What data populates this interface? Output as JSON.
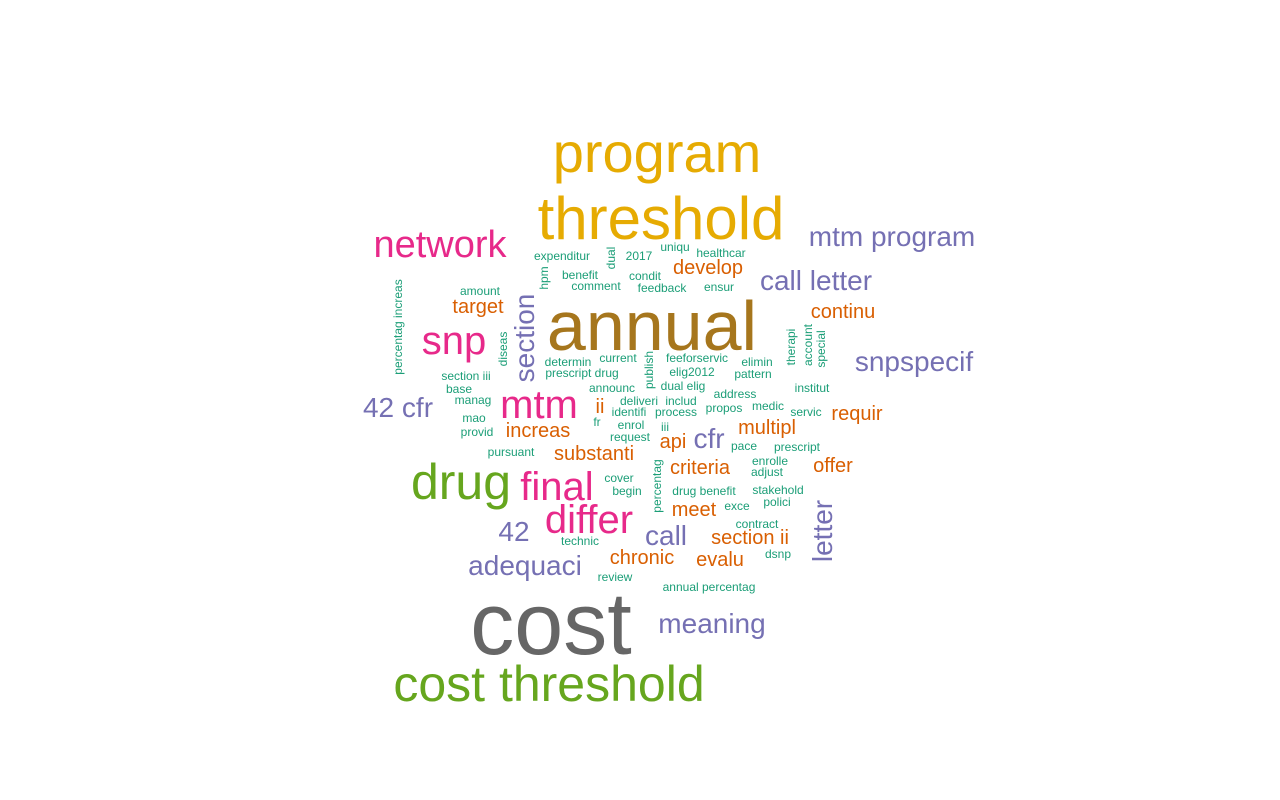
{
  "colors": {
    "gold_dark": "#a6761d",
    "gold": "#e6ab02",
    "green": "#66a61e",
    "magenta": "#e7298a",
    "purple": "#7570b3",
    "orange": "#d95f02",
    "teal": "#1b9e77",
    "gray": "#666666"
  },
  "words": [
    {
      "text": "cost",
      "color": "gray"
    },
    {
      "text": "annual",
      "color": "gold_dark"
    },
    {
      "text": "threshold",
      "color": "gold"
    },
    {
      "text": "program",
      "color": "gold"
    },
    {
      "text": "cost threshold",
      "color": "green"
    },
    {
      "text": "drug",
      "color": "green"
    },
    {
      "text": "network",
      "color": "magenta"
    },
    {
      "text": "snp",
      "color": "magenta"
    },
    {
      "text": "mtm",
      "color": "magenta"
    },
    {
      "text": "final",
      "color": "magenta"
    },
    {
      "text": "differ",
      "color": "magenta"
    },
    {
      "text": "mtm program",
      "color": "purple"
    },
    {
      "text": "call letter",
      "color": "purple"
    },
    {
      "text": "snpspecif",
      "color": "purple"
    },
    {
      "text": "42 cfr",
      "color": "purple"
    },
    {
      "text": "section",
      "color": "purple"
    },
    {
      "text": "cfr",
      "color": "purple"
    },
    {
      "text": "42",
      "color": "purple"
    },
    {
      "text": "call",
      "color": "purple"
    },
    {
      "text": "adequaci",
      "color": "purple"
    },
    {
      "text": "meaning",
      "color": "purple"
    },
    {
      "text": "letter",
      "color": "purple"
    },
    {
      "text": "develop",
      "color": "orange"
    },
    {
      "text": "target",
      "color": "orange"
    },
    {
      "text": "continu",
      "color": "orange"
    },
    {
      "text": "requir",
      "color": "orange"
    },
    {
      "text": "multipl",
      "color": "orange"
    },
    {
      "text": "ii",
      "color": "orange"
    },
    {
      "text": "increas",
      "color": "orange"
    },
    {
      "text": "api",
      "color": "orange"
    },
    {
      "text": "substanti",
      "color": "orange"
    },
    {
      "text": "criteria",
      "color": "orange"
    },
    {
      "text": "offer",
      "color": "orange"
    },
    {
      "text": "meet",
      "color": "orange"
    },
    {
      "text": "section ii",
      "color": "orange"
    },
    {
      "text": "chronic",
      "color": "orange"
    },
    {
      "text": "evalu",
      "color": "orange"
    },
    {
      "text": "uniqu",
      "color": "teal"
    },
    {
      "text": "healthcar",
      "color": "teal"
    },
    {
      "text": "expenditur",
      "color": "teal"
    },
    {
      "text": "dual",
      "color": "teal"
    },
    {
      "text": "2017",
      "color": "teal"
    },
    {
      "text": "benefit",
      "color": "teal"
    },
    {
      "text": "condit",
      "color": "teal"
    },
    {
      "text": "hpm",
      "color": "teal"
    },
    {
      "text": "amount",
      "color": "teal"
    },
    {
      "text": "comment",
      "color": "teal"
    },
    {
      "text": "feedback",
      "color": "teal"
    },
    {
      "text": "ensur",
      "color": "teal"
    },
    {
      "text": "base",
      "color": "teal"
    },
    {
      "text": "percentag increas",
      "color": "teal"
    },
    {
      "text": "diseas",
      "color": "teal"
    },
    {
      "text": "determin",
      "color": "teal"
    },
    {
      "text": "current",
      "color": "teal"
    },
    {
      "text": "publish",
      "color": "teal"
    },
    {
      "text": "feeforservic",
      "color": "teal"
    },
    {
      "text": "elimin",
      "color": "teal"
    },
    {
      "text": "therapi",
      "color": "teal"
    },
    {
      "text": "account",
      "color": "teal"
    },
    {
      "text": "special",
      "color": "teal"
    },
    {
      "text": "section iii",
      "color": "teal"
    },
    {
      "text": "prescript drug",
      "color": "teal"
    },
    {
      "text": "elig2012",
      "color": "teal"
    },
    {
      "text": "pattern",
      "color": "teal"
    },
    {
      "text": "announc",
      "color": "teal"
    },
    {
      "text": "dual elig",
      "color": "teal"
    },
    {
      "text": "institut",
      "color": "teal"
    },
    {
      "text": "manag",
      "color": "teal"
    },
    {
      "text": "deliveri",
      "color": "teal"
    },
    {
      "text": "includ",
      "color": "teal"
    },
    {
      "text": "address",
      "color": "teal"
    },
    {
      "text": "mao",
      "color": "teal"
    },
    {
      "text": "identifi",
      "color": "teal"
    },
    {
      "text": "process",
      "color": "teal"
    },
    {
      "text": "propos",
      "color": "teal"
    },
    {
      "text": "medic",
      "color": "teal"
    },
    {
      "text": "servic",
      "color": "teal"
    },
    {
      "text": "fr",
      "color": "teal"
    },
    {
      "text": "enrol",
      "color": "teal"
    },
    {
      "text": "iii",
      "color": "teal"
    },
    {
      "text": "provid",
      "color": "teal"
    },
    {
      "text": "request",
      "color": "teal"
    },
    {
      "text": "pace",
      "color": "teal"
    },
    {
      "text": "prescript",
      "color": "teal"
    },
    {
      "text": "pursuant",
      "color": "teal"
    },
    {
      "text": "percentag",
      "color": "teal"
    },
    {
      "text": "enrolle",
      "color": "teal"
    },
    {
      "text": "adjust",
      "color": "teal"
    },
    {
      "text": "cover",
      "color": "teal"
    },
    {
      "text": "begin",
      "color": "teal"
    },
    {
      "text": "drug benefit",
      "color": "teal"
    },
    {
      "text": "stakehold",
      "color": "teal"
    },
    {
      "text": "exce",
      "color": "teal"
    },
    {
      "text": "polici",
      "color": "teal"
    },
    {
      "text": "contract",
      "color": "teal"
    },
    {
      "text": "technic",
      "color": "teal"
    },
    {
      "text": "dsnp",
      "color": "teal"
    },
    {
      "text": "review",
      "color": "teal"
    },
    {
      "text": "annual percentag",
      "color": "teal"
    }
  ]
}
